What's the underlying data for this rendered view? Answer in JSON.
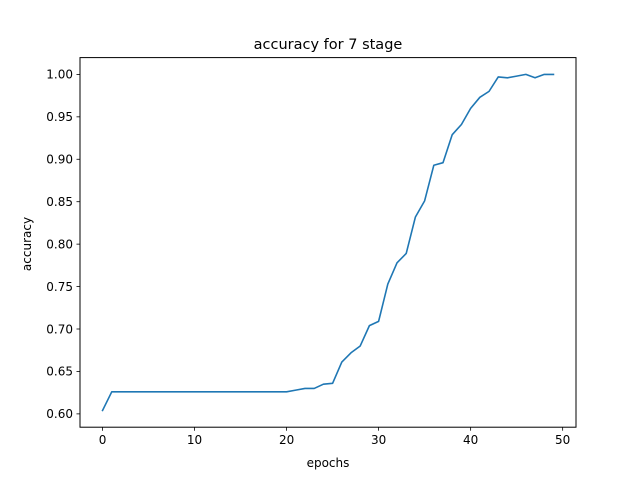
{
  "chart_data": {
    "type": "line",
    "title": "accuracy for 7 stage",
    "xlabel": "epochs",
    "ylabel": "accuracy",
    "xlim": [
      -2.45,
      51.45
    ],
    "ylim": [
      0.5843,
      1.0198
    ],
    "xticks": [
      0,
      10,
      20,
      30,
      40,
      50
    ],
    "yticks": [
      0.6,
      0.65,
      0.7,
      0.75,
      0.8,
      0.85,
      0.9,
      0.95,
      1.0
    ],
    "xtick_labels": [
      "0",
      "10",
      "20",
      "30",
      "40",
      "50"
    ],
    "ytick_labels": [
      "0.60",
      "0.65",
      "0.70",
      "0.75",
      "0.80",
      "0.85",
      "0.90",
      "0.95",
      "1.00"
    ],
    "grid": false,
    "series": [
      {
        "color": "#1f77b4",
        "x": [
          0,
          1,
          2,
          3,
          4,
          5,
          6,
          7,
          8,
          9,
          10,
          11,
          12,
          13,
          14,
          15,
          16,
          17,
          18,
          19,
          20,
          21,
          22,
          23,
          24,
          25,
          26,
          27,
          28,
          29,
          30,
          31,
          32,
          33,
          34,
          35,
          36,
          37,
          38,
          39,
          40,
          41,
          42,
          43,
          44,
          45,
          46,
          47,
          48,
          49
        ],
        "y": [
          0.604,
          0.626,
          0.626,
          0.626,
          0.626,
          0.626,
          0.626,
          0.626,
          0.626,
          0.626,
          0.626,
          0.626,
          0.626,
          0.626,
          0.626,
          0.626,
          0.626,
          0.626,
          0.626,
          0.626,
          0.626,
          0.628,
          0.63,
          0.63,
          0.635,
          0.636,
          0.661,
          0.672,
          0.68,
          0.704,
          0.709,
          0.753,
          0.778,
          0.789,
          0.832,
          0.851,
          0.893,
          0.896,
          0.929,
          0.941,
          0.96,
          0.973,
          0.98,
          0.997,
          0.996,
          0.998,
          1.0,
          0.996,
          1.0,
          1.0
        ]
      }
    ]
  }
}
